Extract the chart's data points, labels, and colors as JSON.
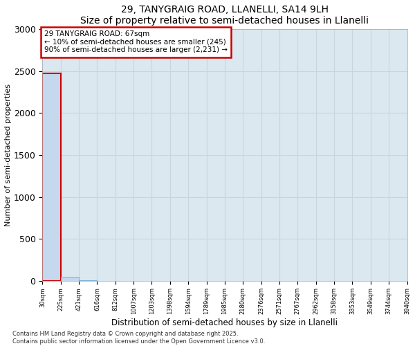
{
  "title": "29, TANYGRAIG ROAD, LLANELLI, SA14 9LH",
  "subtitle": "Size of property relative to semi-detached houses in Llanelli",
  "xlabel": "Distribution of semi-detached houses by size in Llanelli",
  "ylabel": "Number of semi-detached properties",
  "bar_values": [
    2476,
    45,
    1,
    0,
    0,
    0,
    0,
    0,
    0,
    0,
    0,
    0,
    0,
    0,
    0,
    0,
    0,
    0,
    0,
    0
  ],
  "x_labels": [
    "30sqm",
    "225sqm",
    "421sqm",
    "616sqm",
    "812sqm",
    "1007sqm",
    "1203sqm",
    "1398sqm",
    "1594sqm",
    "1789sqm",
    "1985sqm",
    "2180sqm",
    "2376sqm",
    "2571sqm",
    "2767sqm",
    "2962sqm",
    "3158sqm",
    "3353sqm",
    "3549sqm",
    "3744sqm",
    "3940sqm"
  ],
  "bar_color": "#c5d8ed",
  "bar_edge_color": "#7aafd4",
  "ylim": [
    0,
    3000
  ],
  "yticks": [
    0,
    500,
    1000,
    1500,
    2000,
    2500,
    3000
  ],
  "grid_color": "#c8d4e0",
  "background_color": "#dce8f0",
  "annotation_text": "29 TANYGRAIG ROAD: 67sqm\n← 10% of semi-detached houses are smaller (245)\n90% of semi-detached houses are larger (2,231) →",
  "annotation_box_color": "#cc0000",
  "property_bar_index": 0,
  "footer": "Contains HM Land Registry data © Crown copyright and database right 2025.\nContains public sector information licensed under the Open Government Licence v3.0."
}
